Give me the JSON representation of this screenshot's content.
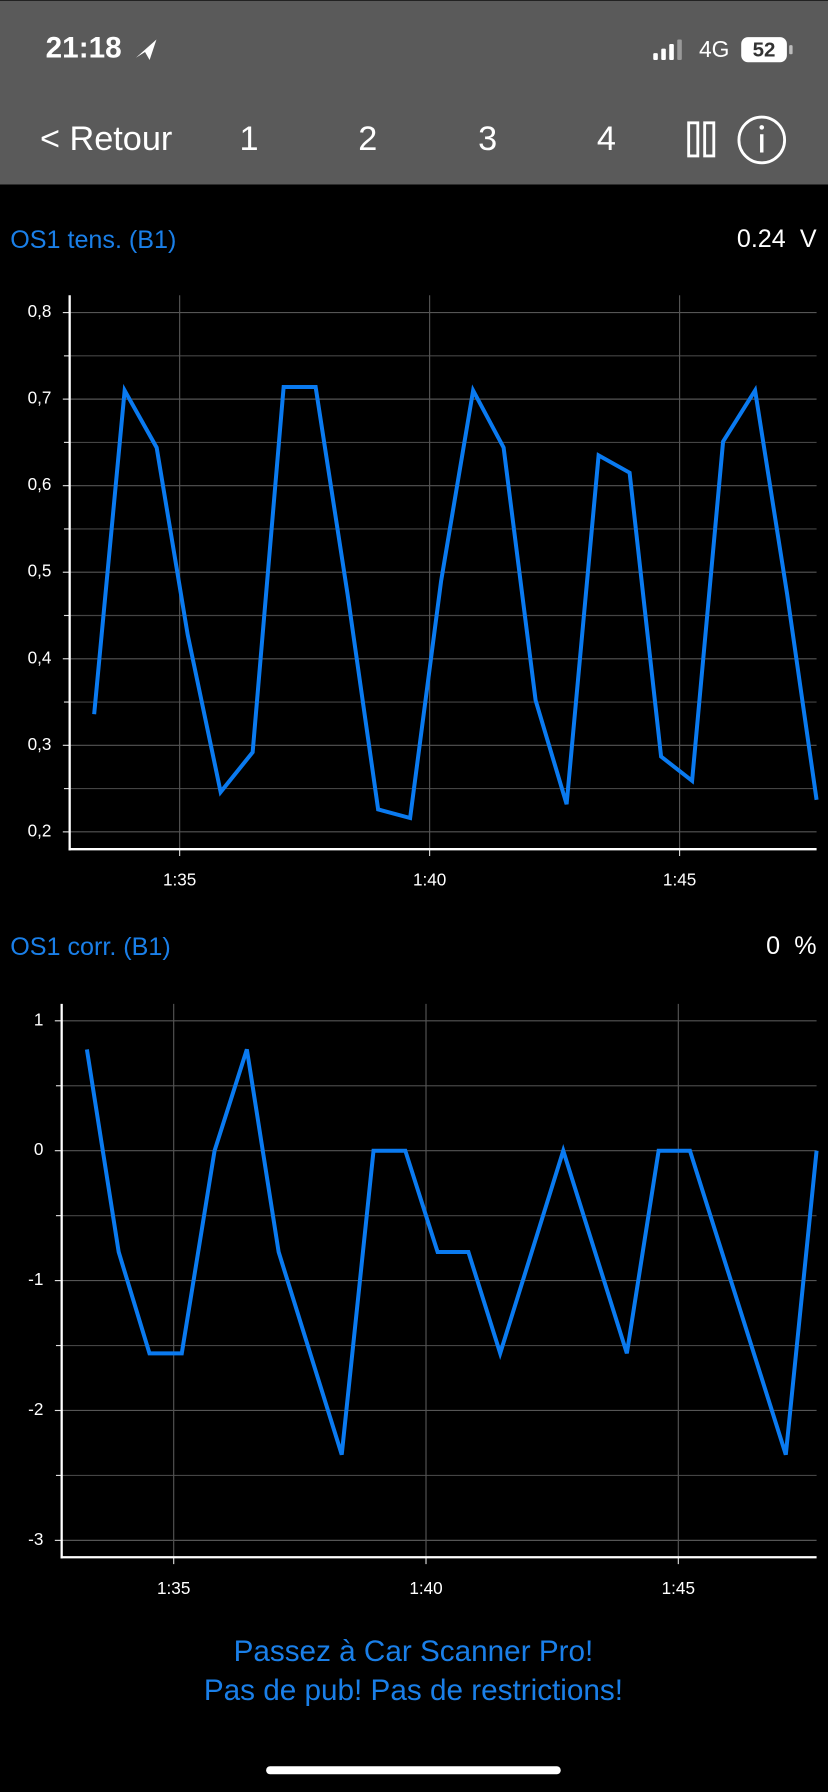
{
  "status_bar": {
    "time": "21:18",
    "network": "4G",
    "battery": "52"
  },
  "nav": {
    "back": "< Retour",
    "tabs": [
      "1",
      "2",
      "3",
      "4"
    ]
  },
  "chart_data": [
    {
      "type": "line",
      "title": "OS1 tens. (B1)",
      "current_value": "0.24",
      "unit": "V",
      "color": "#0a7af0",
      "x": [
        93.29,
        93.9,
        94.54,
        95.16,
        95.82,
        96.46,
        97.08,
        97.72,
        98.36,
        98.97,
        99.61,
        100.23,
        100.87,
        101.48,
        102.12,
        102.74,
        103.38,
        104.0,
        104.63,
        105.25,
        105.87,
        106.51,
        107.15,
        107.74
      ],
      "values": [
        0.336,
        0.71,
        0.644,
        0.428,
        0.246,
        0.292,
        0.714,
        0.714,
        0.474,
        0.226,
        0.216,
        0.49,
        0.71,
        0.644,
        0.352,
        0.232,
        0.635,
        0.615,
        0.287,
        0.259,
        0.651,
        0.71,
        0.475,
        0.237
      ],
      "xlim": [
        92.8,
        107.74
      ],
      "ylim": [
        0.18,
        0.82
      ],
      "xticks": [
        {
          "value": 95,
          "label": "1:35"
        },
        {
          "value": 100,
          "label": "1:40"
        },
        {
          "value": 105,
          "label": "1:45"
        }
      ],
      "yticks": [
        {
          "value": 0.2,
          "label": "0,2"
        },
        {
          "value": 0.3,
          "label": "0,3"
        },
        {
          "value": 0.4,
          "label": "0,4"
        },
        {
          "value": 0.5,
          "label": "0,5"
        },
        {
          "value": 0.6,
          "label": "0,6"
        },
        {
          "value": 0.7,
          "label": "0,7"
        },
        {
          "value": 0.8,
          "label": "0,8"
        }
      ],
      "yticks_minor": [
        0.25,
        0.35,
        0.45,
        0.55,
        0.65,
        0.75
      ],
      "grid": true
    },
    {
      "type": "line",
      "title": "OS1 corr. (B1)",
      "current_value": "0",
      "unit": "%",
      "color": "#0a7af0",
      "x": [
        93.28,
        93.91,
        94.52,
        95.16,
        95.81,
        96.45,
        97.08,
        98.33,
        98.96,
        99.59,
        100.23,
        100.84,
        101.47,
        102.72,
        103.98,
        104.61,
        105.23,
        107.13,
        107.74
      ],
      "values": [
        0.78,
        -0.78,
        -1.56,
        -1.56,
        0,
        0.78,
        -0.78,
        -2.34,
        0,
        0,
        -0.78,
        -0.78,
        -1.56,
        0,
        -1.56,
        0,
        0,
        -2.34,
        0
      ],
      "xlim": [
        92.78,
        107.74
      ],
      "ylim": [
        -3.13,
        1.13
      ],
      "xticks": [
        {
          "value": 95,
          "label": "1:35"
        },
        {
          "value": 100,
          "label": "1:40"
        },
        {
          "value": 105,
          "label": "1:45"
        }
      ],
      "yticks": [
        -3,
        -2,
        -1,
        0,
        1
      ],
      "yticks_minor": [
        -2.5,
        -1.5,
        -0.5,
        0.5
      ],
      "grid": true
    }
  ],
  "promo": [
    "Passez à Car Scanner Pro!",
    "Pas de pub! Pas de restrictions!"
  ]
}
